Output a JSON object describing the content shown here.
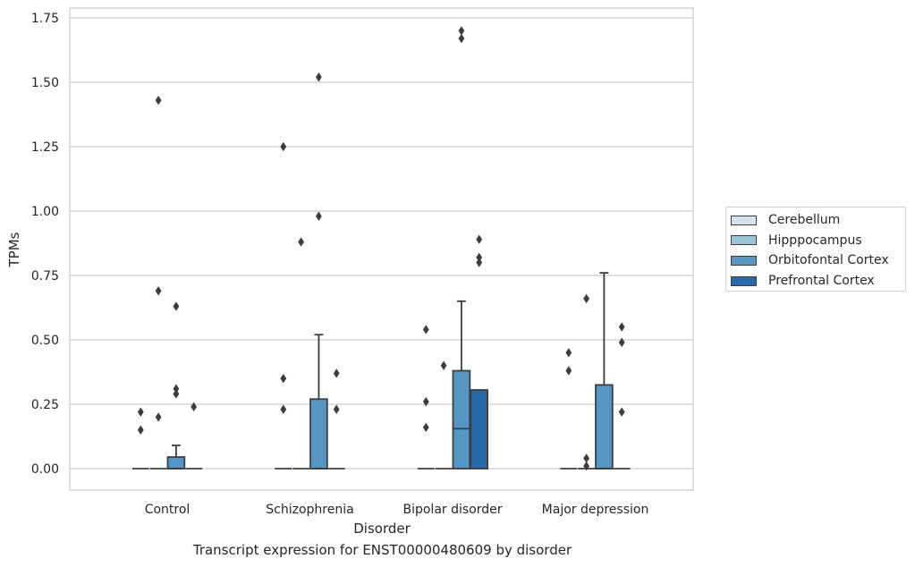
{
  "chart_data": {
    "type": "box",
    "caption": "Transcript expression for ENST00000480609 by disorder",
    "xlabel": "Disorder",
    "ylabel": "TPMs",
    "ylim": [
      -0.083,
      1.79
    ],
    "yticks": [
      "0.00",
      "0.25",
      "0.50",
      "0.75",
      "1.00",
      "1.25",
      "1.50",
      "1.75"
    ],
    "grid": "horizontal",
    "legend_position": "right",
    "categories": [
      "Control",
      "Schizophrenia",
      "Bipolar disorder",
      "Major depression"
    ],
    "series": [
      {
        "name": "Cerebellum",
        "color": "#d4e3f0",
        "boxes": [
          {
            "q1": 0,
            "median": 0,
            "q3": 0,
            "whisker_low": 0,
            "whisker_high": 0,
            "outliers": [
              0.15,
              0.22
            ]
          },
          {
            "q1": 0,
            "median": 0,
            "q3": 0,
            "whisker_low": 0,
            "whisker_high": 0,
            "outliers": [
              0.23,
              0.35,
              1.25
            ]
          },
          {
            "q1": 0,
            "median": 0,
            "q3": 0,
            "whisker_low": 0,
            "whisker_high": 0,
            "outliers": [
              0.16,
              0.26,
              0.54
            ]
          },
          {
            "q1": 0,
            "median": 0,
            "q3": 0,
            "whisker_low": 0,
            "whisker_high": 0,
            "outliers": [
              0.38,
              0.45
            ]
          }
        ]
      },
      {
        "name": "Hipppocampus",
        "color": "#9cc4de",
        "boxes": [
          {
            "q1": 0,
            "median": 0,
            "q3": 0,
            "whisker_low": 0,
            "whisker_high": 0,
            "outliers": [
              0.2,
              0.69,
              1.43
            ]
          },
          {
            "q1": 0,
            "median": 0,
            "q3": 0,
            "whisker_low": 0,
            "whisker_high": 0,
            "outliers": [
              0.88
            ]
          },
          {
            "q1": 0,
            "median": 0,
            "q3": 0,
            "whisker_low": 0,
            "whisker_high": 0,
            "outliers": [
              0.4
            ]
          },
          {
            "q1": 0,
            "median": 0,
            "q3": 0,
            "whisker_low": 0,
            "whisker_high": 0,
            "outliers": [
              0.01,
              0.04,
              0.66
            ]
          }
        ]
      },
      {
        "name": "Orbitofontal Cortex",
        "color": "#5596c4",
        "boxes": [
          {
            "q1": 0,
            "median": 0,
            "q3": 0.045,
            "whisker_low": 0,
            "whisker_high": 0.09,
            "outliers": [
              0.29,
              0.31,
              0.63
            ]
          },
          {
            "q1": 0,
            "median": 0,
            "q3": 0.27,
            "whisker_low": 0,
            "whisker_high": 0.52,
            "outliers": [
              0.98,
              1.52
            ]
          },
          {
            "q1": 0,
            "median": 0.155,
            "q3": 0.38,
            "whisker_low": 0,
            "whisker_high": 0.65,
            "outliers": [
              1.67,
              1.7
            ]
          },
          {
            "q1": 0,
            "median": 0,
            "q3": 0.325,
            "whisker_low": 0,
            "whisker_high": 0.76,
            "outliers": []
          }
        ]
      },
      {
        "name": "Prefrontal Cortex",
        "color": "#2a69a8",
        "boxes": [
          {
            "q1": 0,
            "median": 0,
            "q3": 0,
            "whisker_low": 0,
            "whisker_high": 0,
            "outliers": [
              0.24
            ]
          },
          {
            "q1": 0,
            "median": 0,
            "q3": 0,
            "whisker_low": 0,
            "whisker_high": 0,
            "outliers": [
              0.23,
              0.37
            ]
          },
          {
            "q1": 0,
            "median": 0.305,
            "q3": 0.305,
            "whisker_low": 0,
            "whisker_high": 0.305,
            "outliers": [
              0.8,
              0.82,
              0.89
            ]
          },
          {
            "q1": 0,
            "median": 0,
            "q3": 0,
            "whisker_low": 0,
            "whisker_high": 0,
            "outliers": [
              0.22,
              0.49,
              0.55
            ]
          }
        ]
      }
    ]
  }
}
